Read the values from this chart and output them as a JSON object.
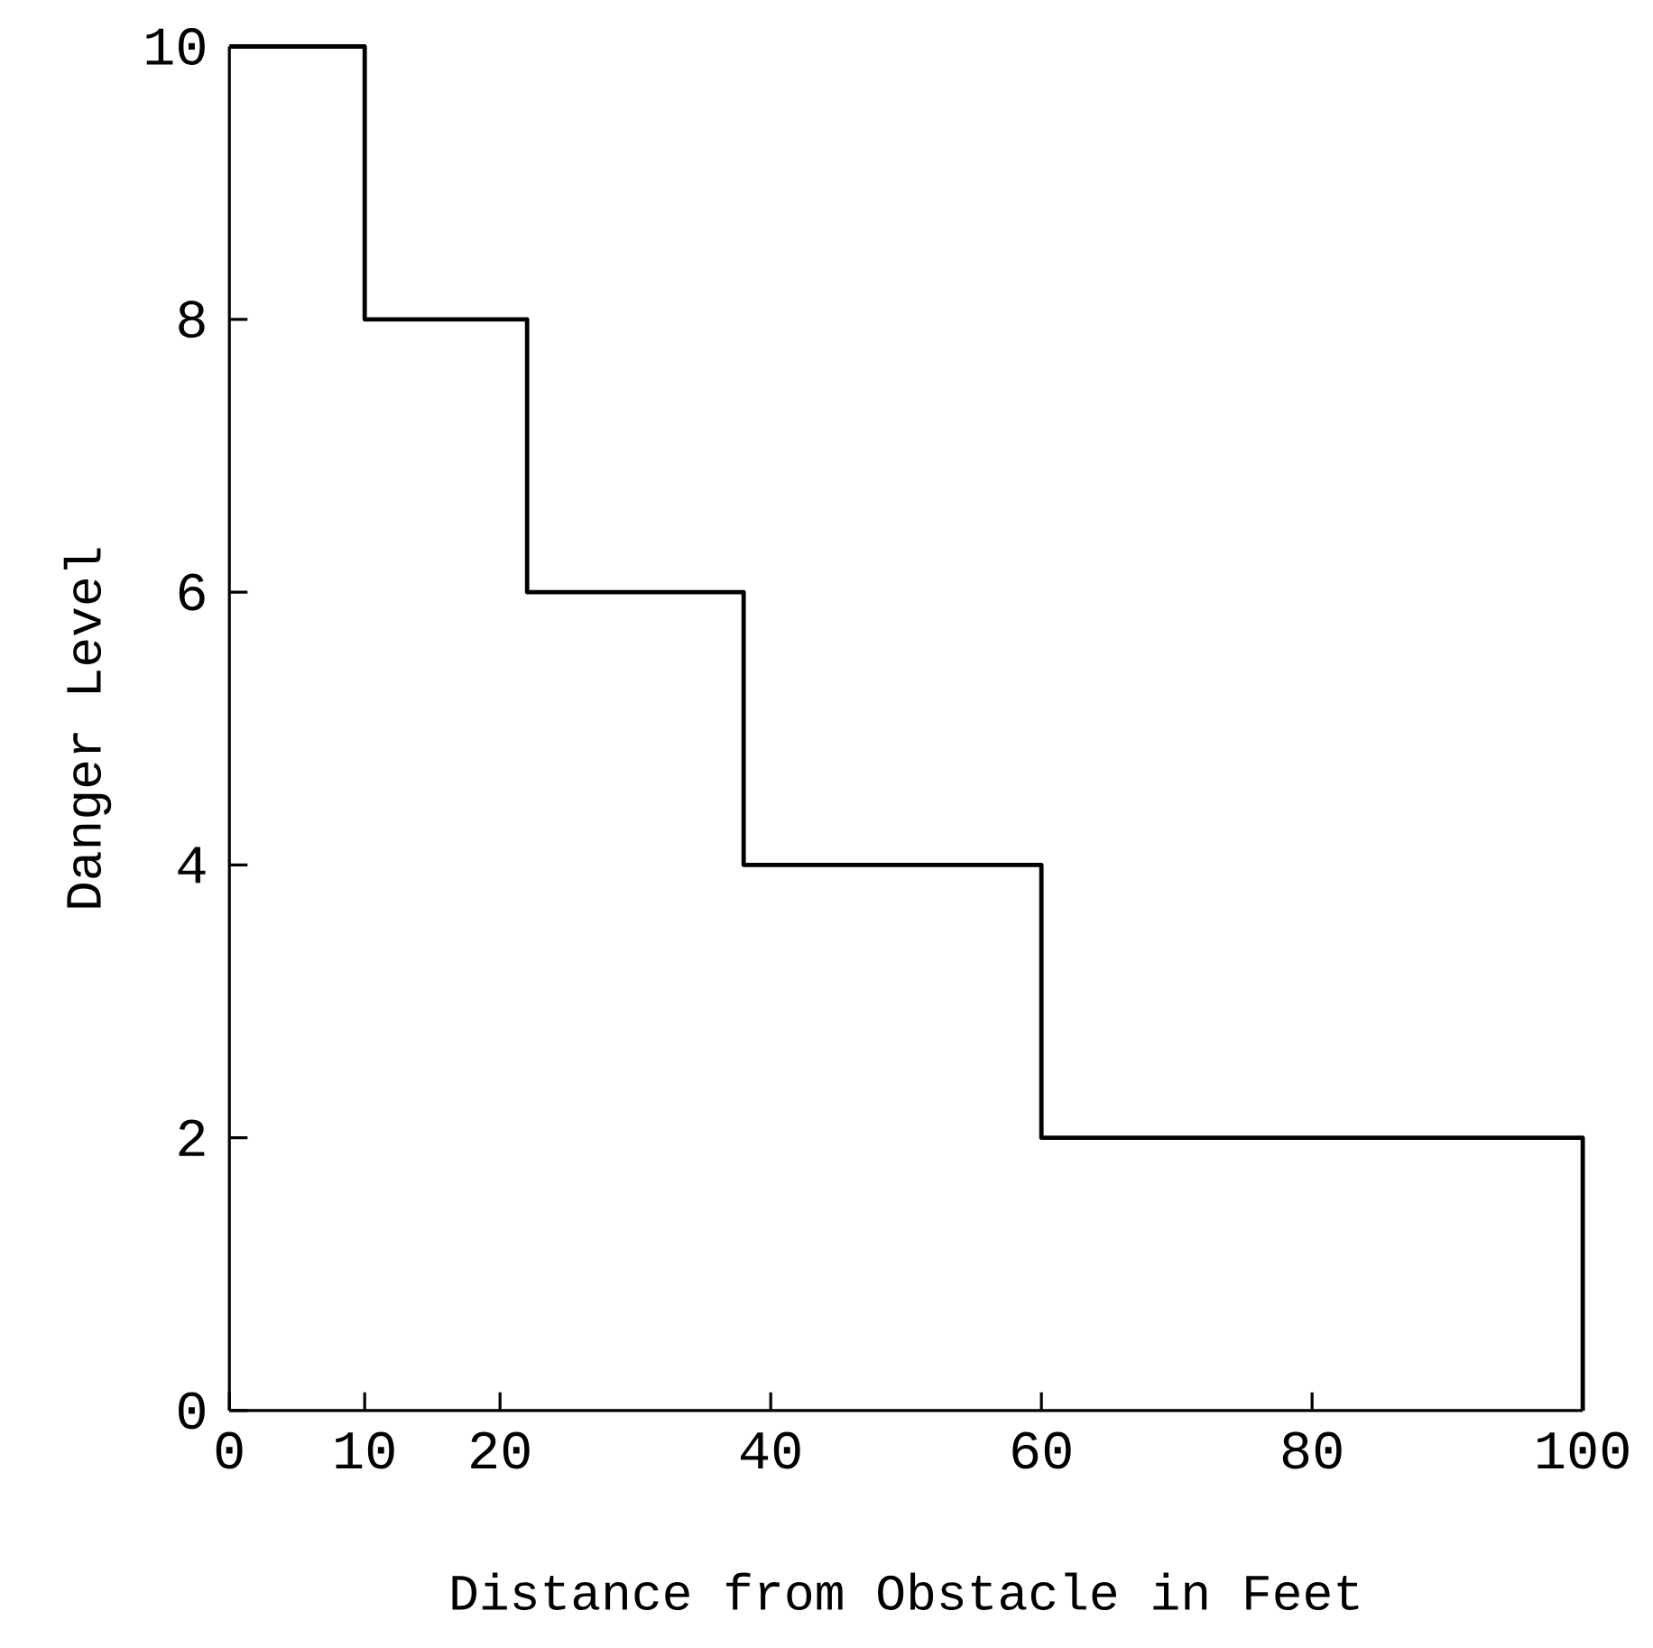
{
  "chart_data": {
    "type": "step",
    "xlabel": "Distance from Obstacle in Feet",
    "ylabel": "Danger Level",
    "x": [
      0,
      10,
      22,
      38,
      60,
      100
    ],
    "values": [
      10,
      8,
      6,
      4,
      2,
      0
    ],
    "color": "#000000",
    "xlim": [
      0,
      100
    ],
    "ylim": [
      0,
      10
    ],
    "xticks": [
      0,
      10,
      20,
      40,
      60,
      80,
      100
    ],
    "yticks": [
      0,
      2,
      4,
      6,
      8,
      10
    ]
  }
}
